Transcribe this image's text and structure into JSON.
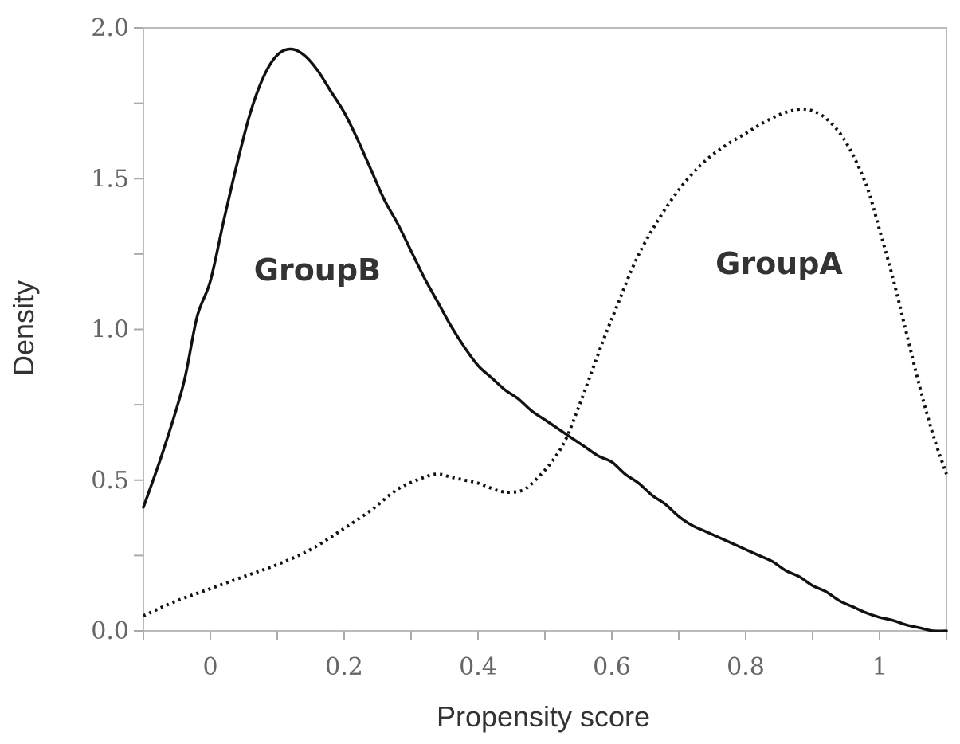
{
  "chart_data": {
    "type": "line",
    "title": "",
    "xlabel": "Propensity score",
    "ylabel": "Density",
    "xlim": [
      -0.1,
      1.1
    ],
    "ylim": [
      0.0,
      2.0
    ],
    "x_ticks": [
      0,
      0.2,
      0.4,
      0.6,
      0.8,
      1
    ],
    "x_tick_labels": [
      "0",
      "0.2",
      "0.4",
      "0.6",
      "0.8",
      "1"
    ],
    "y_ticks": [
      0.0,
      0.5,
      1.0,
      1.5,
      2.0
    ],
    "y_tick_labels": [
      "0.0",
      "0.5",
      "1.0",
      "1.5",
      "2.0"
    ],
    "grid": false,
    "legend": "none (series labeled directly on plot)",
    "series": [
      {
        "name": "GroupB",
        "line_style": "solid",
        "color": "#111111",
        "points": [
          [
            -0.1,
            0.41
          ],
          [
            -0.07,
            0.6
          ],
          [
            -0.04,
            0.82
          ],
          [
            -0.02,
            1.04
          ],
          [
            0.0,
            1.16
          ],
          [
            0.02,
            1.36
          ],
          [
            0.04,
            1.55
          ],
          [
            0.06,
            1.72
          ],
          [
            0.08,
            1.84
          ],
          [
            0.1,
            1.91
          ],
          [
            0.12,
            1.93
          ],
          [
            0.14,
            1.91
          ],
          [
            0.16,
            1.86
          ],
          [
            0.18,
            1.79
          ],
          [
            0.2,
            1.72
          ],
          [
            0.22,
            1.63
          ],
          [
            0.24,
            1.53
          ],
          [
            0.26,
            1.43
          ],
          [
            0.28,
            1.35
          ],
          [
            0.3,
            1.26
          ],
          [
            0.32,
            1.17
          ],
          [
            0.34,
            1.09
          ],
          [
            0.36,
            1.01
          ],
          [
            0.38,
            0.94
          ],
          [
            0.4,
            0.88
          ],
          [
            0.42,
            0.84
          ],
          [
            0.44,
            0.8
          ],
          [
            0.46,
            0.77
          ],
          [
            0.48,
            0.73
          ],
          [
            0.5,
            0.7
          ],
          [
            0.52,
            0.67
          ],
          [
            0.54,
            0.64
          ],
          [
            0.56,
            0.61
          ],
          [
            0.58,
            0.58
          ],
          [
            0.6,
            0.56
          ],
          [
            0.62,
            0.52
          ],
          [
            0.64,
            0.49
          ],
          [
            0.66,
            0.45
          ],
          [
            0.68,
            0.42
          ],
          [
            0.7,
            0.38
          ],
          [
            0.72,
            0.35
          ],
          [
            0.74,
            0.33
          ],
          [
            0.76,
            0.31
          ],
          [
            0.78,
            0.29
          ],
          [
            0.8,
            0.27
          ],
          [
            0.82,
            0.25
          ],
          [
            0.84,
            0.23
          ],
          [
            0.86,
            0.2
          ],
          [
            0.88,
            0.18
          ],
          [
            0.9,
            0.15
          ],
          [
            0.92,
            0.13
          ],
          [
            0.94,
            0.1
          ],
          [
            0.96,
            0.08
          ],
          [
            0.98,
            0.06
          ],
          [
            1.0,
            0.045
          ],
          [
            1.02,
            0.035
          ],
          [
            1.04,
            0.02
          ],
          [
            1.06,
            0.01
          ],
          [
            1.08,
            0.0
          ],
          [
            1.1,
            0.0
          ]
        ]
      },
      {
        "name": "GroupA",
        "line_style": "dotted",
        "color": "#111111",
        "points": [
          [
            -0.1,
            0.05
          ],
          [
            -0.05,
            0.1
          ],
          [
            0.0,
            0.14
          ],
          [
            0.05,
            0.18
          ],
          [
            0.1,
            0.22
          ],
          [
            0.15,
            0.27
          ],
          [
            0.2,
            0.34
          ],
          [
            0.24,
            0.4
          ],
          [
            0.28,
            0.47
          ],
          [
            0.32,
            0.51
          ],
          [
            0.34,
            0.52
          ],
          [
            0.36,
            0.51
          ],
          [
            0.38,
            0.5
          ],
          [
            0.4,
            0.49
          ],
          [
            0.43,
            0.465
          ],
          [
            0.45,
            0.46
          ],
          [
            0.47,
            0.47
          ],
          [
            0.49,
            0.51
          ],
          [
            0.51,
            0.56
          ],
          [
            0.53,
            0.63
          ],
          [
            0.55,
            0.74
          ],
          [
            0.57,
            0.86
          ],
          [
            0.59,
            0.98
          ],
          [
            0.61,
            1.09
          ],
          [
            0.63,
            1.2
          ],
          [
            0.65,
            1.29
          ],
          [
            0.68,
            1.4
          ],
          [
            0.71,
            1.49
          ],
          [
            0.74,
            1.56
          ],
          [
            0.77,
            1.61
          ],
          [
            0.8,
            1.65
          ],
          [
            0.83,
            1.69
          ],
          [
            0.86,
            1.72
          ],
          [
            0.89,
            1.73
          ],
          [
            0.92,
            1.7
          ],
          [
            0.95,
            1.62
          ],
          [
            0.98,
            1.48
          ],
          [
            1.0,
            1.33
          ],
          [
            1.02,
            1.17
          ],
          [
            1.04,
            0.99
          ],
          [
            1.06,
            0.81
          ],
          [
            1.08,
            0.65
          ],
          [
            1.1,
            0.52
          ]
        ]
      }
    ],
    "annotations": [
      {
        "text": "GroupB",
        "x": 0.16,
        "y": 1.2
      },
      {
        "text": "GroupA",
        "x": 0.85,
        "y": 1.22
      }
    ]
  }
}
